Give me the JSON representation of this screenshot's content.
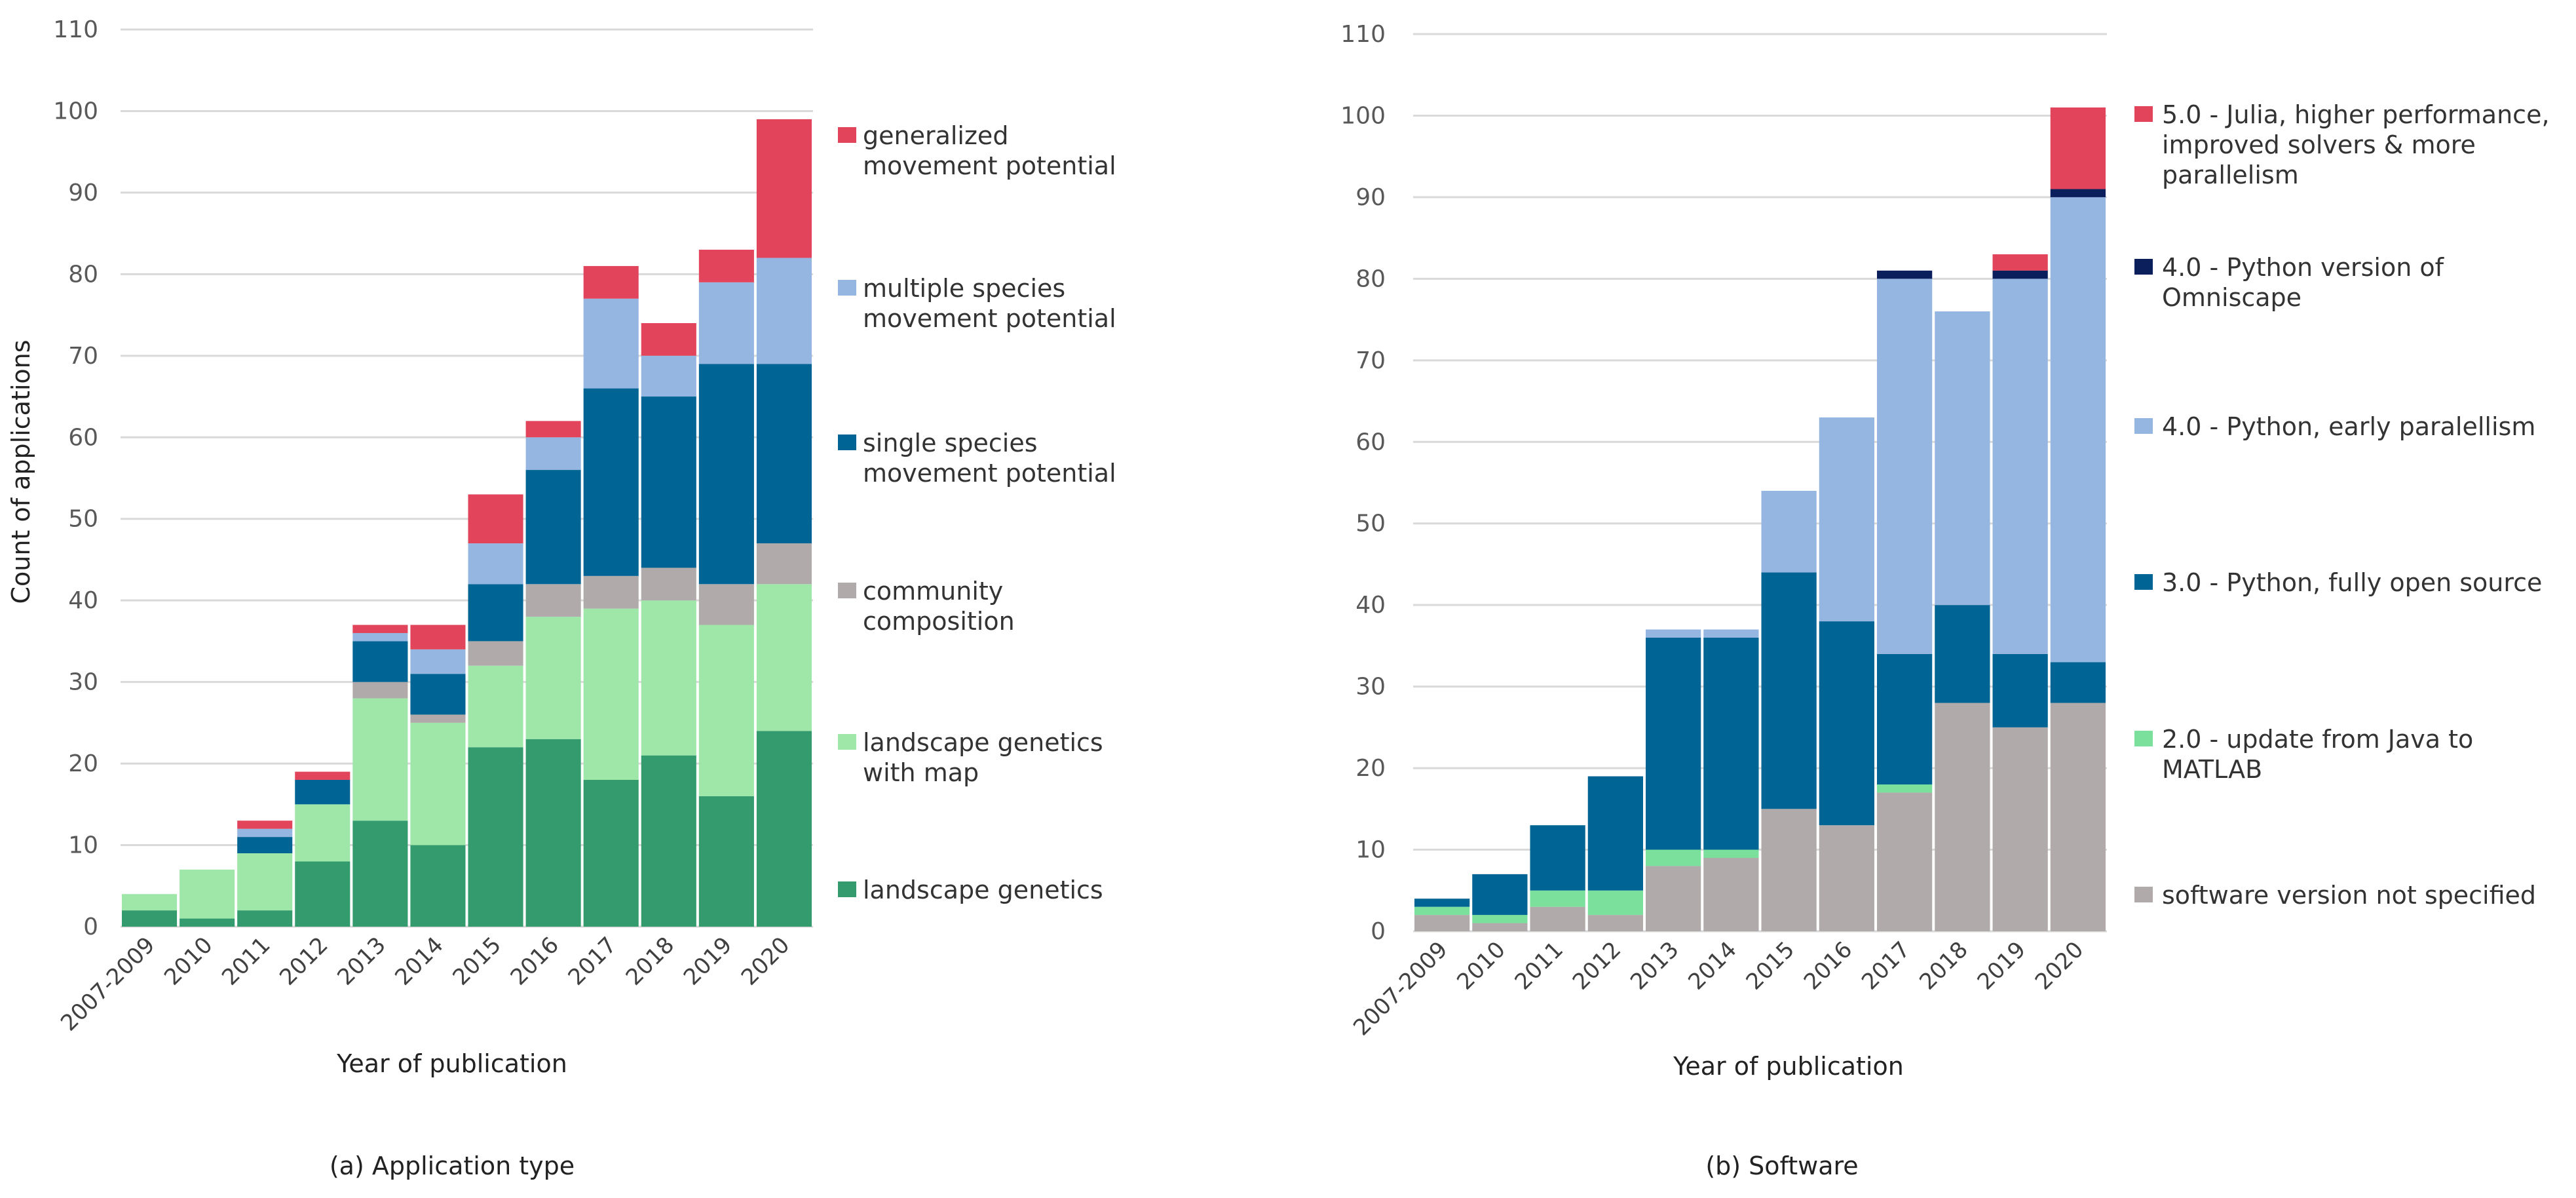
{
  "chart_data": [
    {
      "type": "bar",
      "stacked": true,
      "caption": "(a) Application type",
      "title": "",
      "xlabel": "Year of publication",
      "ylabel": "Count of applications",
      "ylim": [
        0,
        110
      ],
      "yticks": [
        0,
        10,
        20,
        30,
        40,
        50,
        60,
        70,
        80,
        90,
        100,
        110
      ],
      "grid": true,
      "legend_position": "right",
      "categories": [
        "2007-2009",
        "2010",
        "2011",
        "2012",
        "2013",
        "2014",
        "2015",
        "2016",
        "2017",
        "2018",
        "2019",
        "2020"
      ],
      "series": [
        {
          "name": "landscape genetics",
          "label_lines": [
            "landscape genetics"
          ],
          "color": "#339b6e",
          "values": [
            2,
            1,
            2,
            8,
            13,
            10,
            22,
            23,
            18,
            21,
            16,
            24
          ]
        },
        {
          "name": "landscape genetics with map",
          "label_lines": [
            "landscape genetics",
            "with map"
          ],
          "color": "#9fe6a9",
          "values": [
            2,
            6,
            7,
            7,
            15,
            15,
            10,
            15,
            21,
            19,
            21,
            18
          ]
        },
        {
          "name": "community composition",
          "label_lines": [
            "community",
            "composition"
          ],
          "color": "#b0abaa",
          "values": [
            0,
            0,
            0,
            0,
            2,
            1,
            3,
            4,
            4,
            4,
            5,
            5
          ]
        },
        {
          "name": "single species movement potential",
          "label_lines": [
            "single species",
            "movement potential"
          ],
          "color": "#006494",
          "values": [
            0,
            0,
            2,
            3,
            5,
            5,
            7,
            14,
            23,
            21,
            27,
            22
          ]
        },
        {
          "name": "multiple species movement potential",
          "label_lines": [
            "multiple species",
            "movement potential"
          ],
          "color": "#96b6e2",
          "values": [
            0,
            0,
            1,
            0,
            1,
            3,
            5,
            4,
            11,
            5,
            10,
            13
          ]
        },
        {
          "name": "generalized movement potential",
          "label_lines": [
            "generalized",
            "movement potential"
          ],
          "color": "#e2445c",
          "values": [
            0,
            0,
            1,
            1,
            1,
            3,
            6,
            2,
            4,
            4,
            4,
            17
          ]
        }
      ]
    },
    {
      "type": "bar",
      "stacked": true,
      "caption": "(b) Software",
      "title": "",
      "xlabel": "Year of publication",
      "ylabel": "",
      "ylim": [
        0,
        110
      ],
      "yticks": [
        0,
        10,
        20,
        30,
        40,
        50,
        60,
        70,
        80,
        90,
        100,
        110
      ],
      "grid": true,
      "legend_position": "right",
      "categories": [
        "2007-2009",
        "2010",
        "2011",
        "2012",
        "2013",
        "2014",
        "2015",
        "2016",
        "2017",
        "2018",
        "2019",
        "2020"
      ],
      "series": [
        {
          "name": "software version not specified",
          "label_lines": [
            "software version not specified"
          ],
          "color": "#b0abaa",
          "values": [
            2,
            1,
            3,
            2,
            8,
            9,
            15,
            13,
            17,
            28,
            25,
            28
          ]
        },
        {
          "name": "2.0 - update from Java to MATLAB",
          "label_lines": [
            "2.0 - update from Java to",
            "MATLAB"
          ],
          "color": "#7ae09b",
          "values": [
            1,
            1,
            2,
            3,
            2,
            1,
            0,
            0,
            1,
            0,
            0,
            0
          ]
        },
        {
          "name": "3.0 - Python, fully open source",
          "label_lines": [
            "3.0 - Python, fully open source"
          ],
          "color": "#006494",
          "values": [
            1,
            5,
            8,
            14,
            26,
            26,
            29,
            25,
            16,
            12,
            9,
            5
          ]
        },
        {
          "name": "4.0 - Python, early paralellism",
          "label_lines": [
            "4.0 - Python, early paralellism"
          ],
          "color": "#96b6e2",
          "values": [
            0,
            0,
            0,
            0,
            1,
            1,
            10,
            25,
            46,
            36,
            46,
            57
          ]
        },
        {
          "name": "4.0 - Python version of Omniscape",
          "label_lines": [
            "4.0 - Python version of",
            "Omniscape"
          ],
          "color": "#0b1f5c",
          "values": [
            0,
            0,
            0,
            0,
            0,
            0,
            0,
            0,
            1,
            0,
            1,
            1
          ]
        },
        {
          "name": "5.0 - Julia, higher performance, improved solvers & more parallelism",
          "label_lines": [
            "5.0 - Julia, higher performance,",
            "improved solvers & more",
            "parallelism"
          ],
          "color": "#e2445c",
          "values": [
            0,
            0,
            0,
            0,
            0,
            0,
            0,
            0,
            0,
            0,
            2,
            10
          ]
        }
      ]
    }
  ]
}
